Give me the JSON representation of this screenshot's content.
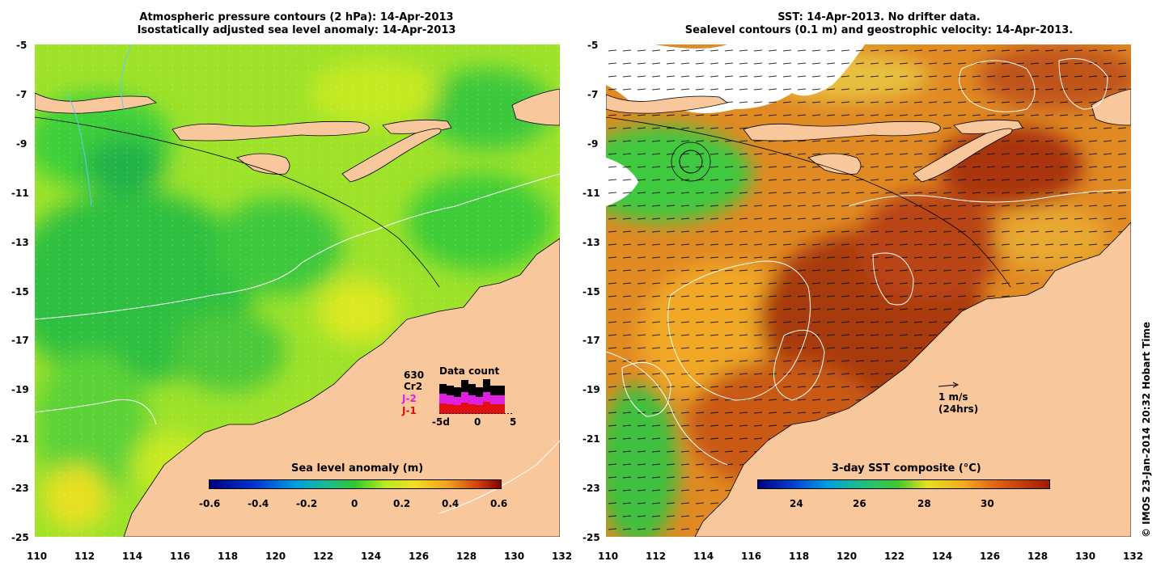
{
  "left_panel": {
    "title_line1": "Atmospheric pressure contours (2 hPa): 14-Apr-2013",
    "title_line2": "Isostatically adjusted sea level anomaly: 14-Apr-2013",
    "colorbar_title": "Sea level anomaly (m)",
    "colorbar_ticks": [
      "-0.6",
      "-0.4",
      "-0.2",
      "0",
      "0.2",
      "0.4",
      "0.6"
    ],
    "data_count": {
      "title": "Data count",
      "total": "630",
      "sat1": "Cr2",
      "sat2": "J-2",
      "sat3": "J-1",
      "axis_labels": [
        "-5d",
        "0",
        "5"
      ]
    }
  },
  "right_panel": {
    "title_line1": "SST: 14-Apr-2013. No drifter data.",
    "title_line2": "Sealevel contours (0.1 m) and geostrophic velocity: 14-Apr-2013.",
    "colorbar_title": "3-day SST composite (°C)",
    "colorbar_ticks": [
      "24",
      "26",
      "28",
      "30"
    ],
    "scale_vector": {
      "line1": "1 m/s",
      "line2": "(24hrs)"
    }
  },
  "axes": {
    "lat_labels": [
      "-5",
      "-7",
      "-9",
      "-11",
      "-13",
      "-15",
      "-17",
      "-19",
      "-21",
      "-23",
      "-25"
    ],
    "lon_labels": [
      "110",
      "112",
      "114",
      "116",
      "118",
      "120",
      "122",
      "124",
      "126",
      "128",
      "130",
      "132"
    ]
  },
  "copyright": "© IMOS 23-Jan-2014 20:32 Hobart Time",
  "colors": {
    "land": "#f9c79c",
    "ocean_green": "#3ec83e",
    "ocean_yellow_green": "#b8ee1e",
    "sst_orange": "#d8641e",
    "sst_red": "#a8320a"
  }
}
